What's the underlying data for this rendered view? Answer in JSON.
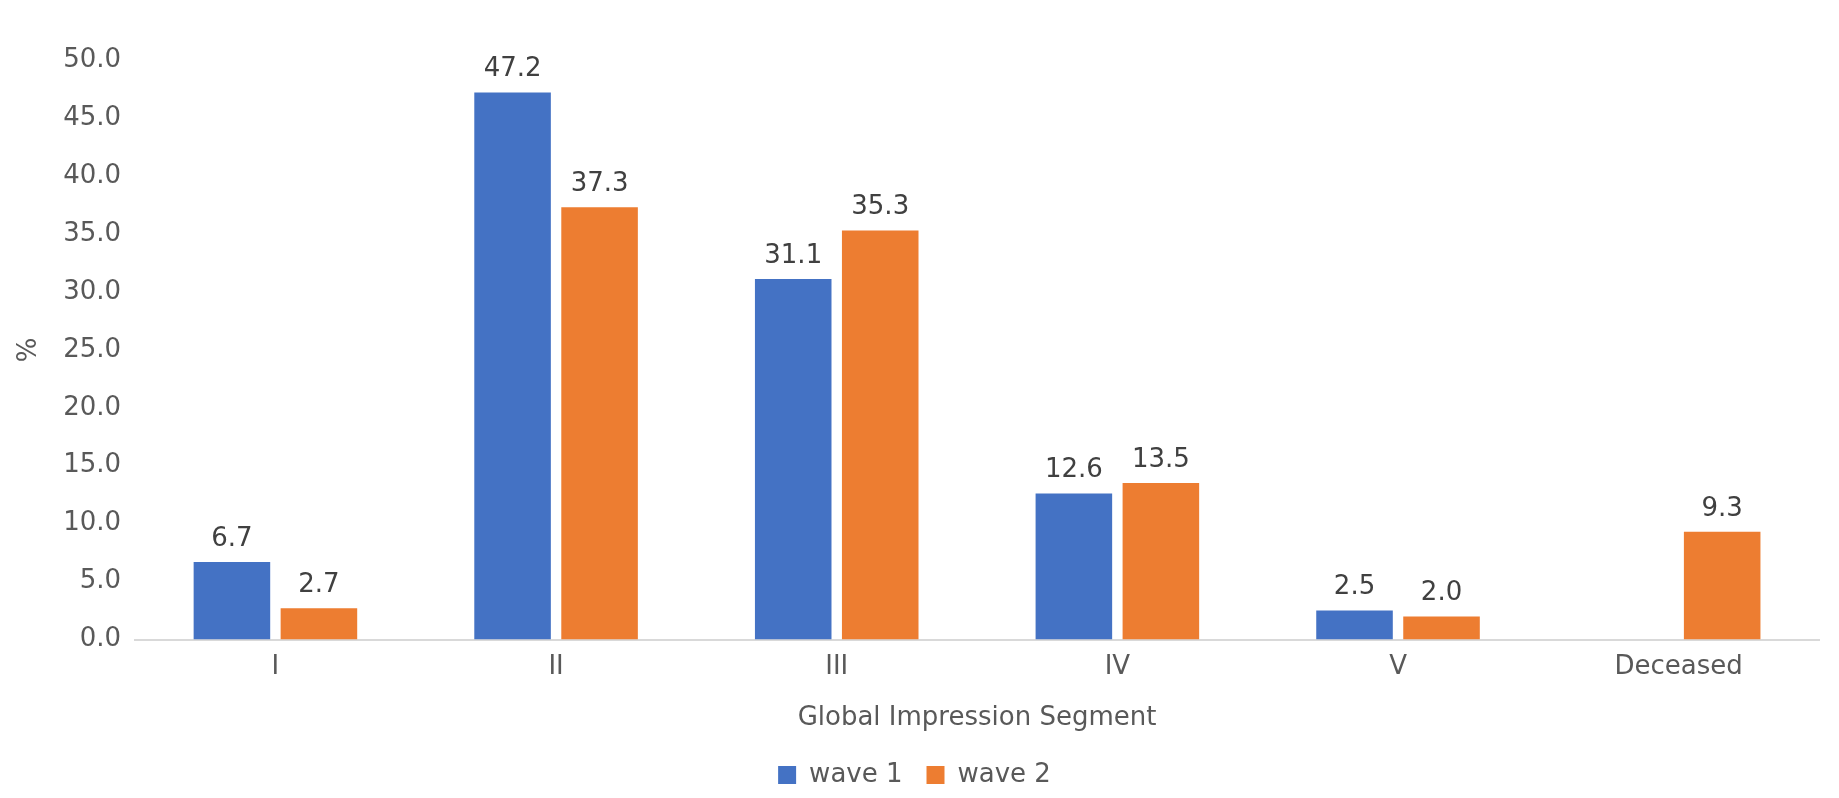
{
  "chart_data": {
    "type": "bar",
    "xlabel": "Global Impression Segment",
    "ylabel": "%",
    "categories": [
      "I",
      "II",
      "III",
      "IV",
      "V",
      "Deceased"
    ],
    "series": [
      {
        "name": "wave 1",
        "color": "#4472c4",
        "values": [
          6.7,
          47.2,
          31.1,
          12.6,
          2.5,
          null
        ],
        "value_labels": [
          "6.7",
          "47.2",
          "31.1",
          "12.6",
          "2.5",
          null
        ]
      },
      {
        "name": "wave 2",
        "color": "#ed7d31",
        "values": [
          2.7,
          37.3,
          35.3,
          13.5,
          2.0,
          9.3
        ],
        "value_labels": [
          "2.7",
          "37.3",
          "35.3",
          "13.5",
          "2.0",
          "9.3"
        ]
      }
    ],
    "ylim": [
      0,
      50
    ],
    "yticks": [
      {
        "value": 0,
        "label": "0.0"
      },
      {
        "value": 5,
        "label": "5.0"
      },
      {
        "value": 10,
        "label": "10.0"
      },
      {
        "value": 15,
        "label": "15.0"
      },
      {
        "value": 20,
        "label": "20.0"
      },
      {
        "value": 25,
        "label": "25.0"
      },
      {
        "value": 30,
        "label": "30.0"
      },
      {
        "value": 35,
        "label": "35.0"
      },
      {
        "value": 40,
        "label": "40.0"
      },
      {
        "value": 45,
        "label": "45.0"
      },
      {
        "value": 50,
        "label": "50.0"
      }
    ],
    "grid": false,
    "legend": "bottom"
  }
}
